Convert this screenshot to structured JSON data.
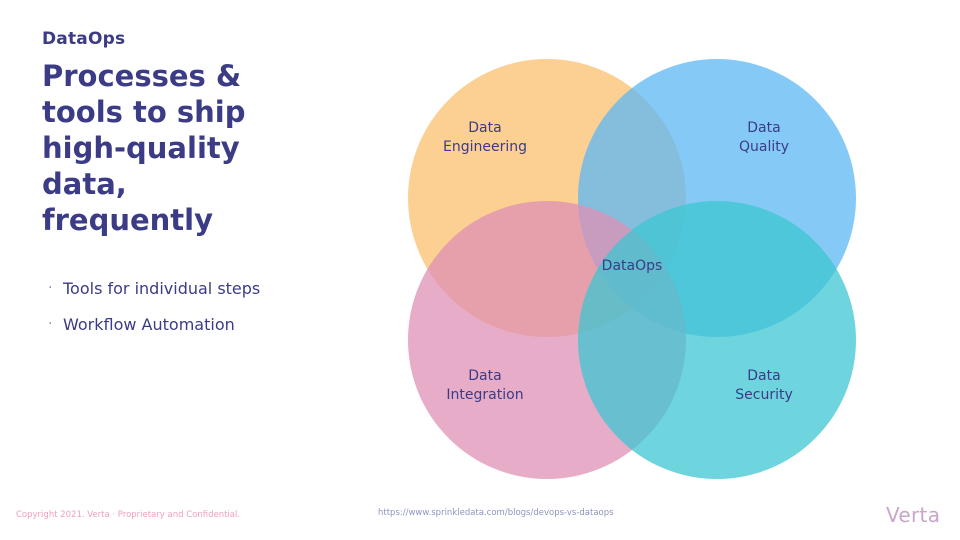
{
  "header": {
    "eyebrow": "DataOps",
    "title": "Processes & tools to ship high-quality data, frequently"
  },
  "bullets": [
    {
      "marker": "·",
      "text": "Tools for individual steps"
    },
    {
      "marker": "·",
      "text": "Workflow Automation"
    }
  ],
  "diagram": {
    "center_label": "DataOps",
    "circles": [
      {
        "line1": "Data",
        "line2": "Engineering",
        "color": "#fbbf6e"
      },
      {
        "line1": "Data",
        "line2": "Quality",
        "color": "#5cb8f4"
      },
      {
        "line1": "Data",
        "line2": "Integration",
        "color": "#df90b4"
      },
      {
        "line1": "Data",
        "line2": "Security",
        "color": "#3ec6d2"
      }
    ]
  },
  "footer": {
    "copyright": "Copyright 2021. Verta  ·  Proprietary and Confidential.",
    "url": "https://www.sprinkledata.com/blogs/devops-vs-dataops",
    "logo": "Verta"
  }
}
